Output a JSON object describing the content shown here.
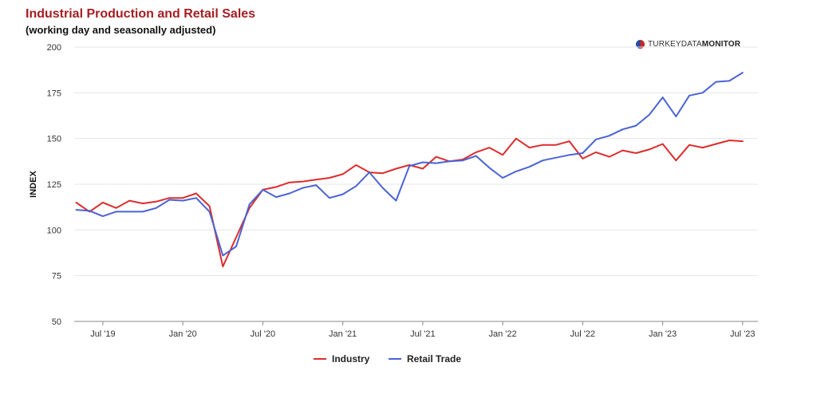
{
  "header": {
    "title": "Industrial Production and Retail Sales",
    "subtitle": "(working day and seasonally adjusted)"
  },
  "logo": {
    "prefix": "TURKEYDATA",
    "suffix": "MONITOR"
  },
  "colors": {
    "industry": "#dd2c2c",
    "retail": "#4a63d4",
    "grid": "#e6e6e6",
    "title": "#a41e22"
  },
  "chart_data": {
    "type": "line",
    "title": "Industrial Production and Retail Sales",
    "subtitle": "(working day and seasonally adjusted)",
    "xlabel": "",
    "ylabel": "INDEX",
    "ylim": [
      50,
      200
    ],
    "yticks": [
      50,
      75,
      100,
      125,
      150,
      175,
      200
    ],
    "grid": true,
    "legend": "bottom-center",
    "x_start": "2019-05",
    "x_months": 52,
    "xticks": [
      {
        "label": "Jul '19",
        "index": 2
      },
      {
        "label": "Jan '20",
        "index": 8
      },
      {
        "label": "Jul '20",
        "index": 14
      },
      {
        "label": "Jan '21",
        "index": 20
      },
      {
        "label": "Jul '21",
        "index": 26
      },
      {
        "label": "Jan '22",
        "index": 32
      },
      {
        "label": "Jul '22",
        "index": 38
      },
      {
        "label": "Jan '23",
        "index": 44
      },
      {
        "label": "Jul '23",
        "index": 50
      }
    ],
    "series": [
      {
        "name": "Industry",
        "color": "#dd2c2c",
        "values": [
          115,
          110,
          115,
          112,
          116,
          114.5,
          115.5,
          117.5,
          117.5,
          120,
          113,
          80,
          96,
          112,
          122,
          123.5,
          126,
          126.5,
          127.5,
          128.5,
          130.5,
          135.5,
          131.5,
          131,
          133.5,
          135.5,
          133.5,
          140,
          137.5,
          138.5,
          142.5,
          145,
          141,
          150,
          145,
          146.5,
          146.5,
          148.5,
          139,
          142.5,
          140,
          143.5,
          142,
          144,
          147,
          138,
          146.5,
          145,
          147,
          149,
          148.5
        ]
      },
      {
        "name": "Retail Trade",
        "color": "#4a63d4",
        "values": [
          111,
          110.5,
          107.5,
          110,
          110,
          110,
          112,
          116.5,
          116,
          117.5,
          110,
          86,
          91,
          114,
          122,
          118,
          120,
          123,
          124.5,
          117.5,
          119.5,
          124,
          131.5,
          123,
          116,
          135,
          137,
          136.5,
          137.5,
          138,
          140.5,
          134,
          128.5,
          132,
          134.5,
          138,
          139.5,
          141,
          142,
          149.5,
          151.5,
          155,
          157,
          163,
          172.5,
          162,
          173.5,
          175,
          181,
          181.5,
          186
        ]
      }
    ]
  }
}
